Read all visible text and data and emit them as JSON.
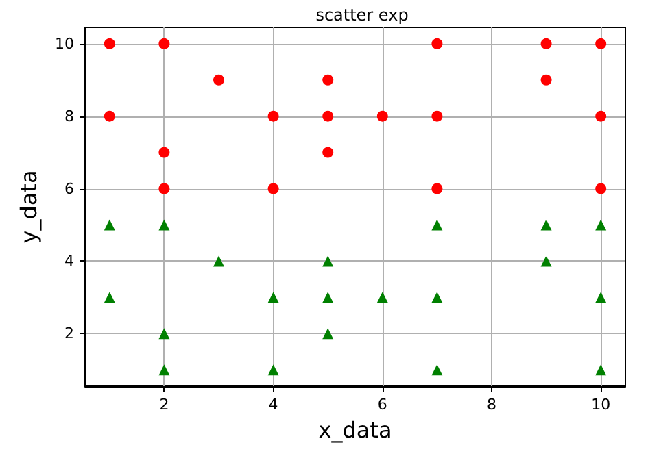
{
  "chart_data": {
    "type": "scatter",
    "title": "scatter exp",
    "xlabel": "x_data",
    "ylabel": "y_data",
    "xlim": [
      0.55,
      10.45
    ],
    "ylim": [
      0.55,
      10.45
    ],
    "xticks": [
      2,
      4,
      6,
      8,
      10
    ],
    "yticks": [
      2,
      4,
      6,
      8,
      10
    ],
    "grid": true,
    "series": [
      {
        "color": "#ff0000",
        "marker": "circle",
        "x": [
          1,
          1,
          2,
          2,
          2,
          3,
          4,
          4,
          5,
          5,
          5,
          6,
          7,
          7,
          7,
          9,
          9,
          10,
          10,
          10
        ],
        "values": [
          10,
          8,
          10,
          7,
          6,
          9,
          8,
          6,
          9,
          8,
          7,
          8,
          10,
          8,
          6,
          10,
          9,
          10,
          8,
          6
        ]
      },
      {
        "color": "#008000",
        "marker": "triangle",
        "x": [
          1,
          1,
          2,
          2,
          2,
          3,
          4,
          4,
          5,
          5,
          5,
          6,
          7,
          7,
          7,
          9,
          9,
          10,
          10,
          10
        ],
        "values": [
          5,
          3,
          5,
          2,
          1,
          4,
          3,
          1,
          4,
          3,
          2,
          3,
          5,
          3,
          1,
          5,
          4,
          5,
          3,
          1
        ]
      }
    ]
  }
}
